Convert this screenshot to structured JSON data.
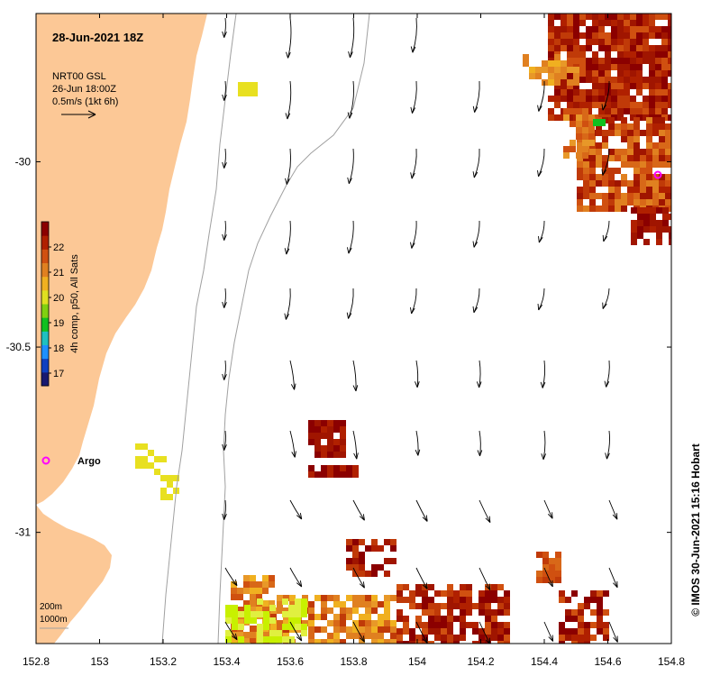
{
  "title": "28-Jun-2021 18Z",
  "current_legend": {
    "line1": "NRT00 GSL",
    "line2": "26-Jun 18:00Z",
    "line3": "0.5m/s (1kt 6h)"
  },
  "colorbar": {
    "label": "4h comp, p50, All Sats",
    "ticks": [
      "22",
      "21",
      "20",
      "19",
      "18",
      "17"
    ],
    "range": [
      16.5,
      23
    ],
    "colors": [
      "#191970",
      "#1040c0",
      "#1e90ff",
      "#20c0c0",
      "#10c020",
      "#80d010",
      "#e0e020",
      "#f0b020",
      "#e08020",
      "#d05010",
      "#b02000",
      "#8b0000"
    ]
  },
  "x_axis": {
    "range": [
      152.8,
      154.8
    ],
    "ticks": [
      "152.8",
      "153",
      "153.2",
      "153.4",
      "153.6",
      "153.8",
      "154",
      "154.2",
      "154.4",
      "154.6",
      "154.8"
    ]
  },
  "y_axis": {
    "range": [
      -31.3,
      -29.6
    ],
    "ticks": [
      "-30",
      "-30.5",
      "-31"
    ]
  },
  "depth_legend": {
    "contour1": "200m",
    "contour2": "1000m"
  },
  "argo_label": "Argo",
  "credit": "© IMOS 30-Jun-2021 15:16 Hobart",
  "colors": {
    "land": "#fcc896",
    "argo_marker": "#ff00ff",
    "contour": "#a0a0a0",
    "frame": "#000000"
  }
}
